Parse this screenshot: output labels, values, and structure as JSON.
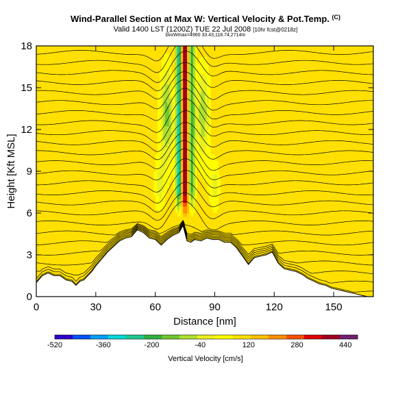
{
  "titles": {
    "line1": "Wind-Parallel Section at Max W: Vertical Velocity & Pot.Temp.",
    "copyright": "(C)",
    "line2_main": "Valid 1400 LST (1200Z) TUE 22 Jul 2008",
    "line2_small": "[10hr fcst@0218z]",
    "line3": "boxWmax=4960 33.43,118.74,2714m"
  },
  "chart_data": {
    "type": "heatmap",
    "title": "Wind-Parallel Section at Max W: Vertical Velocity & Pot.Temp.",
    "xlabel": "Distance [nm]",
    "ylabel": "Height [Kft MSL]",
    "xlim": [
      0,
      170
    ],
    "ylim": [
      0,
      18
    ],
    "xticks": [
      0,
      30,
      60,
      90,
      120,
      150
    ],
    "yticks": [
      0,
      3,
      6,
      9,
      12,
      15,
      18
    ],
    "colorbar": {
      "label": "Vertical Velocity [cm/s]",
      "min": -520,
      "max": 480,
      "ticks": [
        -520,
        -360,
        -200,
        -40,
        120,
        280,
        440
      ],
      "colors": [
        "#2b00c8",
        "#0050ff",
        "#00a0ff",
        "#00d8d8",
        "#20c890",
        "#30b040",
        "#70c830",
        "#b0e030",
        "#e8f020",
        "#ffff00",
        "#ffe000",
        "#ffc000",
        "#ff9000",
        "#ff5000",
        "#e00000",
        "#a00020",
        "#702070"
      ]
    },
    "terrain": {
      "x": [
        0,
        3,
        6,
        9,
        12,
        15,
        18,
        20,
        22,
        24,
        26,
        28,
        30,
        33,
        36,
        39,
        42,
        45,
        48,
        51,
        54,
        57,
        60,
        63,
        66,
        69,
        72,
        74,
        76,
        78,
        80,
        83,
        86,
        89,
        92,
        95,
        98,
        101,
        104,
        107,
        110,
        113,
        116,
        119,
        122,
        125,
        128,
        131,
        134,
        137,
        140,
        143,
        146,
        149,
        152,
        155,
        158,
        161,
        164,
        167,
        170
      ],
      "height": [
        1.0,
        1.5,
        1.7,
        1.5,
        1.5,
        1.2,
        1.1,
        0.8,
        1.1,
        1.2,
        1.5,
        1.8,
        2.2,
        2.7,
        3.2,
        3.6,
        4.0,
        4.2,
        4.3,
        4.8,
        4.6,
        4.2,
        4.1,
        3.7,
        4.1,
        4.4,
        4.6,
        5.1,
        4.0,
        3.9,
        4.1,
        4.0,
        4.2,
        4.1,
        4.1,
        3.9,
        3.9,
        3.5,
        2.9,
        2.3,
        2.8,
        2.9,
        3.0,
        3.2,
        2.4,
        2.0,
        1.9,
        1.8,
        1.6,
        1.3,
        1.1,
        0.9,
        0.8,
        0.6,
        0.5,
        0.4,
        0.3,
        0.2,
        0.1,
        0.0,
        0.0
      ]
    },
    "updraft_core": {
      "center_x": 75,
      "base_height": 6,
      "max_value": 440
    },
    "isentropes": {
      "levels": [
        300,
        302,
        304,
        306,
        308,
        310,
        312,
        314,
        316,
        318,
        320,
        322,
        324,
        326,
        328,
        330,
        332,
        334,
        336,
        338,
        340,
        342,
        344,
        346,
        348
      ],
      "unit": "K"
    }
  }
}
